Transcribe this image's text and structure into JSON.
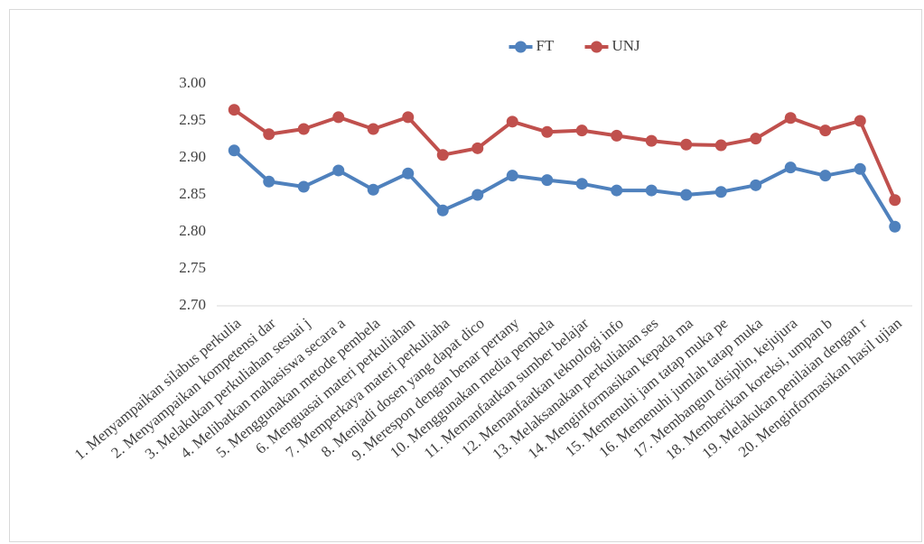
{
  "chart_data": {
    "type": "line",
    "categories": [
      "1. Menyampaikan silabus perkulia",
      "2. Menyampaikan kompetensi dar",
      "3. Melakukan perkuliahan sesuai j",
      "4. Melibatkan mahasiswa secara a",
      "5. Menggunakan metode pembela",
      "6. Menguasai materi perkuliahan",
      "7. Memperkaya materi perkuliaha",
      "8. Menjadi dosen yang dapat dico",
      "9. Merespon dengan benar pertany",
      "10. Menggunakan media pembela",
      "11. Memanfaatkan sumber belajar",
      "12. Memanfaatkan teknologi info",
      "13. Melaksanakan perkuliahan ses",
      "14. Menginformasikan kepada ma",
      "15. Memenuhi jam tatap muka pe",
      "16. Memenuhi jumlah tatap muka",
      "17. Membangun disiplin, kejujura",
      "18. Memberikan koreksi, umpan b",
      "19. Melakukan penilaian dengan r",
      "20. Menginformasikan hasil ujian"
    ],
    "series": [
      {
        "name": "FT",
        "color": "#4f81bd",
        "values": [
          2.91,
          2.868,
          2.861,
          2.883,
          2.857,
          2.879,
          2.829,
          2.85,
          2.876,
          2.87,
          2.865,
          2.856,
          2.856,
          2.85,
          2.854,
          2.863,
          2.887,
          2.876,
          2.885,
          2.807
        ]
      },
      {
        "name": "UNJ",
        "color": "#c0504d",
        "values": [
          2.965,
          2.932,
          2.939,
          2.955,
          2.939,
          2.955,
          2.904,
          2.913,
          2.949,
          2.935,
          2.937,
          2.93,
          2.923,
          2.918,
          2.917,
          2.926,
          2.954,
          2.937,
          2.95,
          2.843
        ]
      }
    ],
    "ylim": [
      2.7,
      3.0
    ],
    "yticks": [
      {
        "value": 2.7,
        "label": "2.70"
      },
      {
        "value": 2.75,
        "label": "2.75"
      },
      {
        "value": 2.8,
        "label": "2.80"
      },
      {
        "value": 2.85,
        "label": "2.85"
      },
      {
        "value": 2.9,
        "label": "2.90"
      },
      {
        "value": 2.95,
        "label": "2.95"
      },
      {
        "value": 3.0,
        "label": "3.00"
      }
    ],
    "legend": "top",
    "grid": false
  }
}
